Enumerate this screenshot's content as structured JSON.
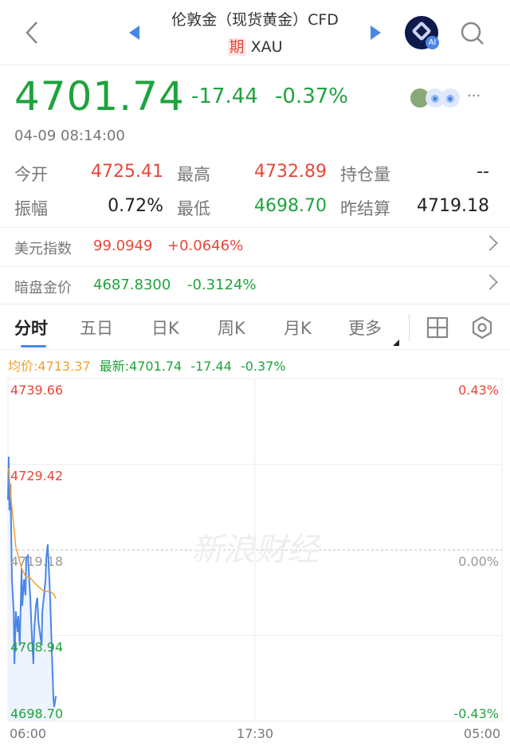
{
  "header": {
    "title": "伦敦金（现货黄金）CFD",
    "tag": "期",
    "code": "XAU",
    "ai_badge": "AI",
    "icons": [
      "back-icon",
      "prev-triangle-icon",
      "next-triangle-icon",
      "ai-assistant-icon",
      "search-icon"
    ]
  },
  "quote": {
    "price": "4701.74",
    "change": "-17.44",
    "change_pct": "-0.37%",
    "time": "04-09 08:14:00",
    "more": "···"
  },
  "stats": [
    {
      "label": "今开",
      "value": "4725.41",
      "color": "red"
    },
    {
      "label": "最高",
      "value": "4732.89",
      "color": "red"
    },
    {
      "label": "持仓量",
      "value": "--",
      "color": "dark"
    },
    {
      "label": "振幅",
      "value": "0.72%",
      "color": "dark"
    },
    {
      "label": "最低",
      "value": "4698.70",
      "color": "green"
    },
    {
      "label": "昨结算",
      "value": "4719.18",
      "color": "dark"
    }
  ],
  "related": [
    {
      "label": "美元指数",
      "value": "99.0949",
      "change": "+0.0646%",
      "color": "red"
    },
    {
      "label": "暗盘金价",
      "value": "4687.8300",
      "change": "-0.3124%",
      "color": "green"
    }
  ],
  "tabs": [
    {
      "label": "分时",
      "active": true
    },
    {
      "label": "五日"
    },
    {
      "label": "日K"
    },
    {
      "label": "周K"
    },
    {
      "label": "月K"
    },
    {
      "label": "更多"
    }
  ],
  "info": {
    "avg": "均价:4713.37",
    "latest": "最新:4701.74",
    "change": "-17.44",
    "pct": "-0.37%"
  },
  "colors": {
    "up": "#e5473b",
    "down": "#1fa33d",
    "price_line": "#4a86e8",
    "avg_line": "#f0a030",
    "accent": "#4a86e8"
  },
  "watermark": "新浪财经",
  "chart_data": {
    "type": "line",
    "ylim": [
      4698.7,
      4739.66
    ],
    "y_ticks_left": [
      "4739.66",
      "4729.42",
      "4719.18",
      "4708.94",
      "4698.70"
    ],
    "y_ticks_right": [
      "0.43%",
      "0.00%",
      "-0.43%"
    ],
    "x_ticks": [
      "06:00",
      "17:30",
      "05:00"
    ],
    "x_range": [
      "06:00",
      "05:00"
    ],
    "reference": 4719.18,
    "grid": true,
    "times": [
      "06:00",
      "06:02",
      "06:04",
      "06:07",
      "06:11",
      "06:16",
      "06:18",
      "06:22",
      "06:27",
      "06:29",
      "06:33",
      "06:38",
      "06:40",
      "06:45",
      "06:49",
      "06:51",
      "06:56",
      "07:00",
      "07:02",
      "07:07",
      "07:11",
      "07:13",
      "07:18",
      "07:22",
      "07:25",
      "07:29",
      "07:34",
      "07:36",
      "07:40",
      "07:45",
      "07:47",
      "07:51",
      "07:56",
      "07:58",
      "08:02",
      "08:07",
      "08:09",
      "08:14"
    ],
    "series": [
      {
        "key": "price",
        "values": [
          4725.18,
          4730.32,
          4723.94,
          4727.09,
          4715.66,
          4711.84,
          4705.56,
          4711.84,
          4709.37,
          4711.27,
          4707.75,
          4716.99,
          4712.51,
          4715.66,
          4713.75,
          4718.23,
          4718.51,
          4715.08,
          4713.75,
          4708.7,
          4705.56,
          4709.37,
          4712.51,
          4713.46,
          4710.61,
          4709.37,
          4707.75,
          4711.84,
          4713.46,
          4715.66,
          4718.23,
          4719.85,
          4715.37,
          4713.18,
          4707.75,
          4701.37,
          4700.41,
          4701.74
        ]
      },
      {
        "key": "avg",
        "times": [
          "06:02",
          "06:07",
          "06:22",
          "06:38",
          "06:49",
          "07:02",
          "07:18",
          "07:40",
          "07:58",
          "08:07",
          "08:14"
        ],
        "values": [
          4729.0,
          4726.0,
          4719.5,
          4716.99,
          4716.04,
          4715.85,
          4715.08,
          4714.23,
          4714.23,
          4713.94,
          4713.37
        ]
      }
    ]
  }
}
